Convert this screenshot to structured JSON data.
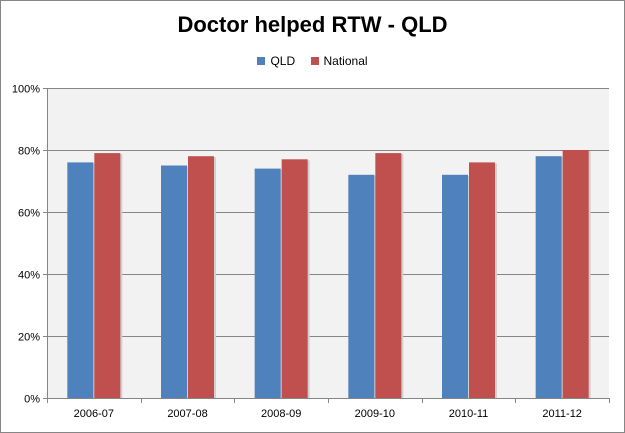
{
  "chart_data": {
    "type": "bar",
    "title": "Doctor helped RTW - QLD",
    "xlabel": "",
    "ylabel": "",
    "categories": [
      "2006-07",
      "2007-08",
      "2008-09",
      "2009-10",
      "2010-11",
      "2011-12"
    ],
    "series": [
      {
        "name": "QLD",
        "color": "#4F81BD",
        "values": [
          76,
          75,
          74,
          72,
          72,
          78
        ]
      },
      {
        "name": "National",
        "color": "#C0504D",
        "values": [
          79,
          78,
          77,
          79,
          76,
          80
        ]
      }
    ],
    "ylim": [
      0,
      100
    ],
    "yticks": [
      0,
      20,
      40,
      60,
      80,
      100
    ],
    "ytick_labels": [
      "0%",
      "20%",
      "40%",
      "60%",
      "80%",
      "100%"
    ],
    "grid": true,
    "legend_position": "top",
    "plot_background": "#F2F2F2"
  }
}
